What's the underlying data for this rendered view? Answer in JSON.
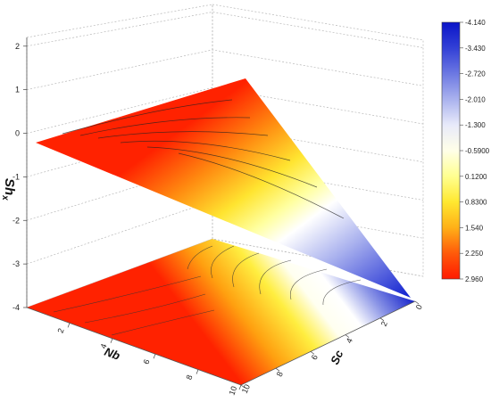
{
  "chart_data": {
    "type": "surface3d",
    "zlabel": "Shx",
    "xlabel": "Nb",
    "ylabel": "Sc",
    "zlim": [
      -4,
      2.2
    ],
    "z_ticks": [
      "2",
      "1",
      "0",
      "-1",
      "-2",
      "-3",
      "-4"
    ],
    "nb_ticks": [
      "2",
      "4",
      "6",
      "8",
      "10"
    ],
    "sc_ticks": [
      "0",
      "2",
      "4",
      "6",
      "8",
      "10"
    ],
    "surface_corners": [
      {
        "Nb": 0,
        "Sc": 10,
        "Shx": 0.3
      },
      {
        "Nb": 10,
        "Sc": 10,
        "Shx": 2.05
      },
      {
        "Nb": 10,
        "Sc": 0,
        "Shx": -4.0
      }
    ],
    "colorbar": {
      "labels": [
        "-4.140",
        "-3.430",
        "-2.720",
        "-2.010",
        "-1.300",
        "-0.5900",
        "0.1200",
        "0.8300",
        "1.540",
        "2.250",
        "2.960"
      ],
      "colors": [
        "#0a14c8",
        "#3240d6",
        "#6c78e2",
        "#aab2ee",
        "#e8eafa",
        "#ffffe8",
        "#ffff90",
        "#ffe830",
        "#ffb018",
        "#ff5a0a",
        "#ff1a00"
      ]
    }
  }
}
